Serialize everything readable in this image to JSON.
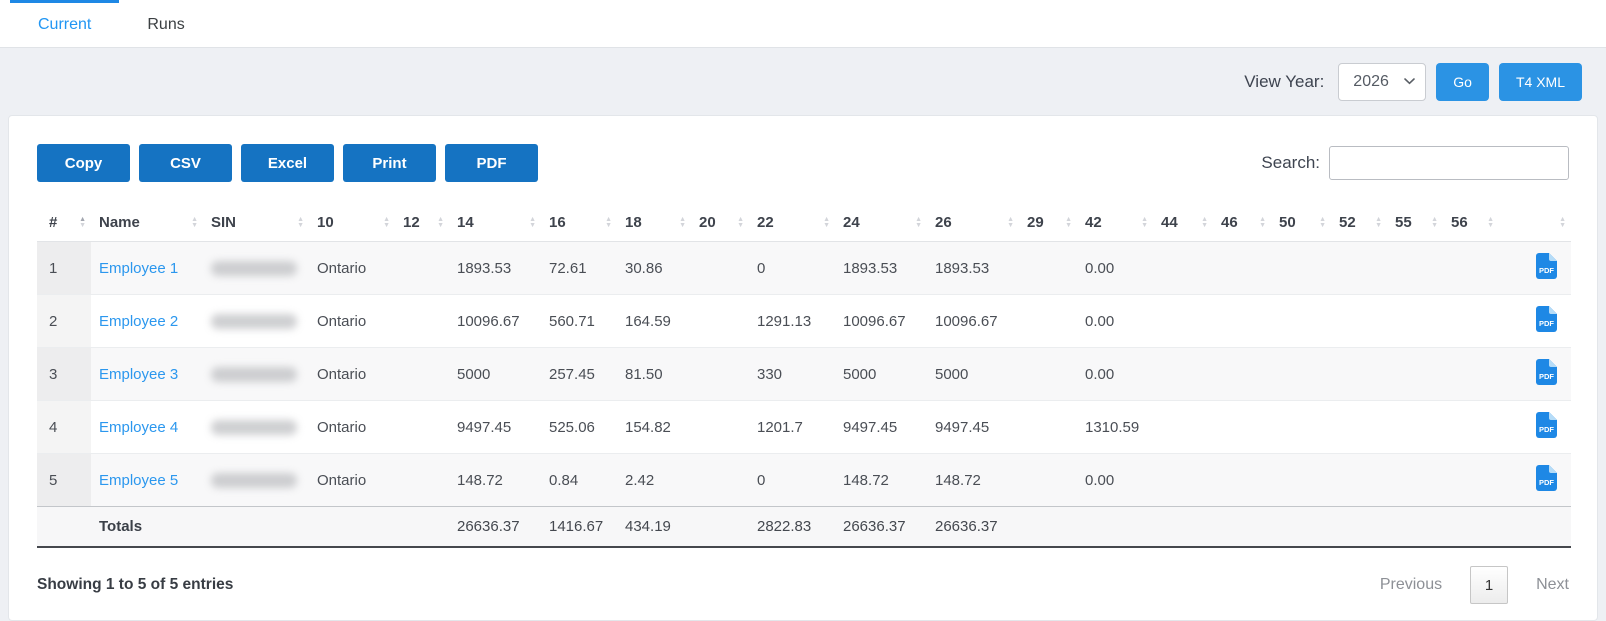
{
  "tabs": [
    {
      "label": "Current",
      "active": true
    },
    {
      "label": "Runs",
      "active": false
    }
  ],
  "toolbar": {
    "view_year_label": "View Year:",
    "year_value": "2026",
    "go_label": "Go",
    "t4xml_label": "T4 XML"
  },
  "export_buttons": [
    "Copy",
    "CSV",
    "Excel",
    "Print",
    "PDF"
  ],
  "search": {
    "label": "Search:",
    "value": ""
  },
  "table": {
    "columns": [
      "#",
      "Name",
      "SIN",
      "10",
      "12",
      "14",
      "16",
      "18",
      "20",
      "22",
      "24",
      "26",
      "29",
      "42",
      "44",
      "46",
      "50",
      "52",
      "55",
      "56",
      ""
    ],
    "rows": [
      {
        "num": "1",
        "name": "Employee 1",
        "sin_redacted": true,
        "values": [
          "Ontario",
          "",
          "1893.53",
          "72.61",
          "30.86",
          "",
          "0",
          "1893.53",
          "1893.53",
          "",
          "0.00",
          "",
          "",
          "",
          "",
          "",
          ""
        ],
        "pdf": true
      },
      {
        "num": "2",
        "name": "Employee 2",
        "sin_redacted": true,
        "values": [
          "Ontario",
          "",
          "10096.67",
          "560.71",
          "164.59",
          "",
          "1291.13",
          "10096.67",
          "10096.67",
          "",
          "0.00",
          "",
          "",
          "",
          "",
          "",
          ""
        ],
        "pdf": true
      },
      {
        "num": "3",
        "name": "Employee 3",
        "sin_redacted": true,
        "values": [
          "Ontario",
          "",
          "5000",
          "257.45",
          "81.50",
          "",
          "330",
          "5000",
          "5000",
          "",
          "0.00",
          "",
          "",
          "",
          "",
          "",
          ""
        ],
        "pdf": true
      },
      {
        "num": "4",
        "name": "Employee 4",
        "sin_redacted": true,
        "values": [
          "Ontario",
          "",
          "9497.45",
          "525.06",
          "154.82",
          "",
          "1201.7",
          "9497.45",
          "9497.45",
          "",
          "1310.59",
          "",
          "",
          "",
          "",
          "",
          ""
        ],
        "pdf": true
      },
      {
        "num": "5",
        "name": "Employee 5",
        "sin_redacted": true,
        "values": [
          "Ontario",
          "",
          "148.72",
          "0.84",
          "2.42",
          "",
          "0",
          "148.72",
          "148.72",
          "",
          "0.00",
          "",
          "",
          "",
          "",
          "",
          ""
        ],
        "pdf": true
      }
    ],
    "totals": {
      "label": "Totals",
      "values": [
        "",
        "",
        "26636.37",
        "1416.67",
        "434.19",
        "",
        "2822.83",
        "26636.37",
        "26636.37",
        "",
        "",
        "",
        "",
        "",
        "",
        "",
        ""
      ]
    }
  },
  "footer": {
    "showing_text": "Showing 1 to 5 of 5 entries",
    "pagination": {
      "previous": "Previous",
      "current_page": "1",
      "next": "Next"
    }
  },
  "colors": {
    "accent_blue": "#2196f3",
    "export_button": "#1573c2",
    "action_button": "#2b93e4",
    "link": "#2b97ee",
    "pdf_icon": "#1e88e5"
  }
}
